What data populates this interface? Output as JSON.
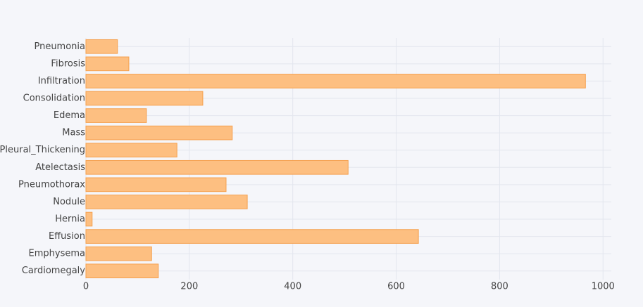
{
  "chart_data": {
    "type": "barh",
    "categories": [
      "Pneumonia",
      "Fibrosis",
      "Infiltration",
      "Consolidation",
      "Edema",
      "Mass",
      "Pleural_Thickening",
      "Atelectasis",
      "Pneumothorax",
      "Nodule",
      "Hernia",
      "Effusion",
      "Emphysema",
      "Cardiomegaly"
    ],
    "values": [
      61,
      83,
      966,
      226,
      117,
      283,
      176,
      507,
      271,
      312,
      12,
      643,
      127,
      140
    ],
    "color": "#fdbf81",
    "edge_color": "#f5a04e",
    "xlim": [
      0,
      1016
    ],
    "xticks": [
      0,
      200,
      400,
      600,
      800,
      1000
    ],
    "grid": true
  }
}
